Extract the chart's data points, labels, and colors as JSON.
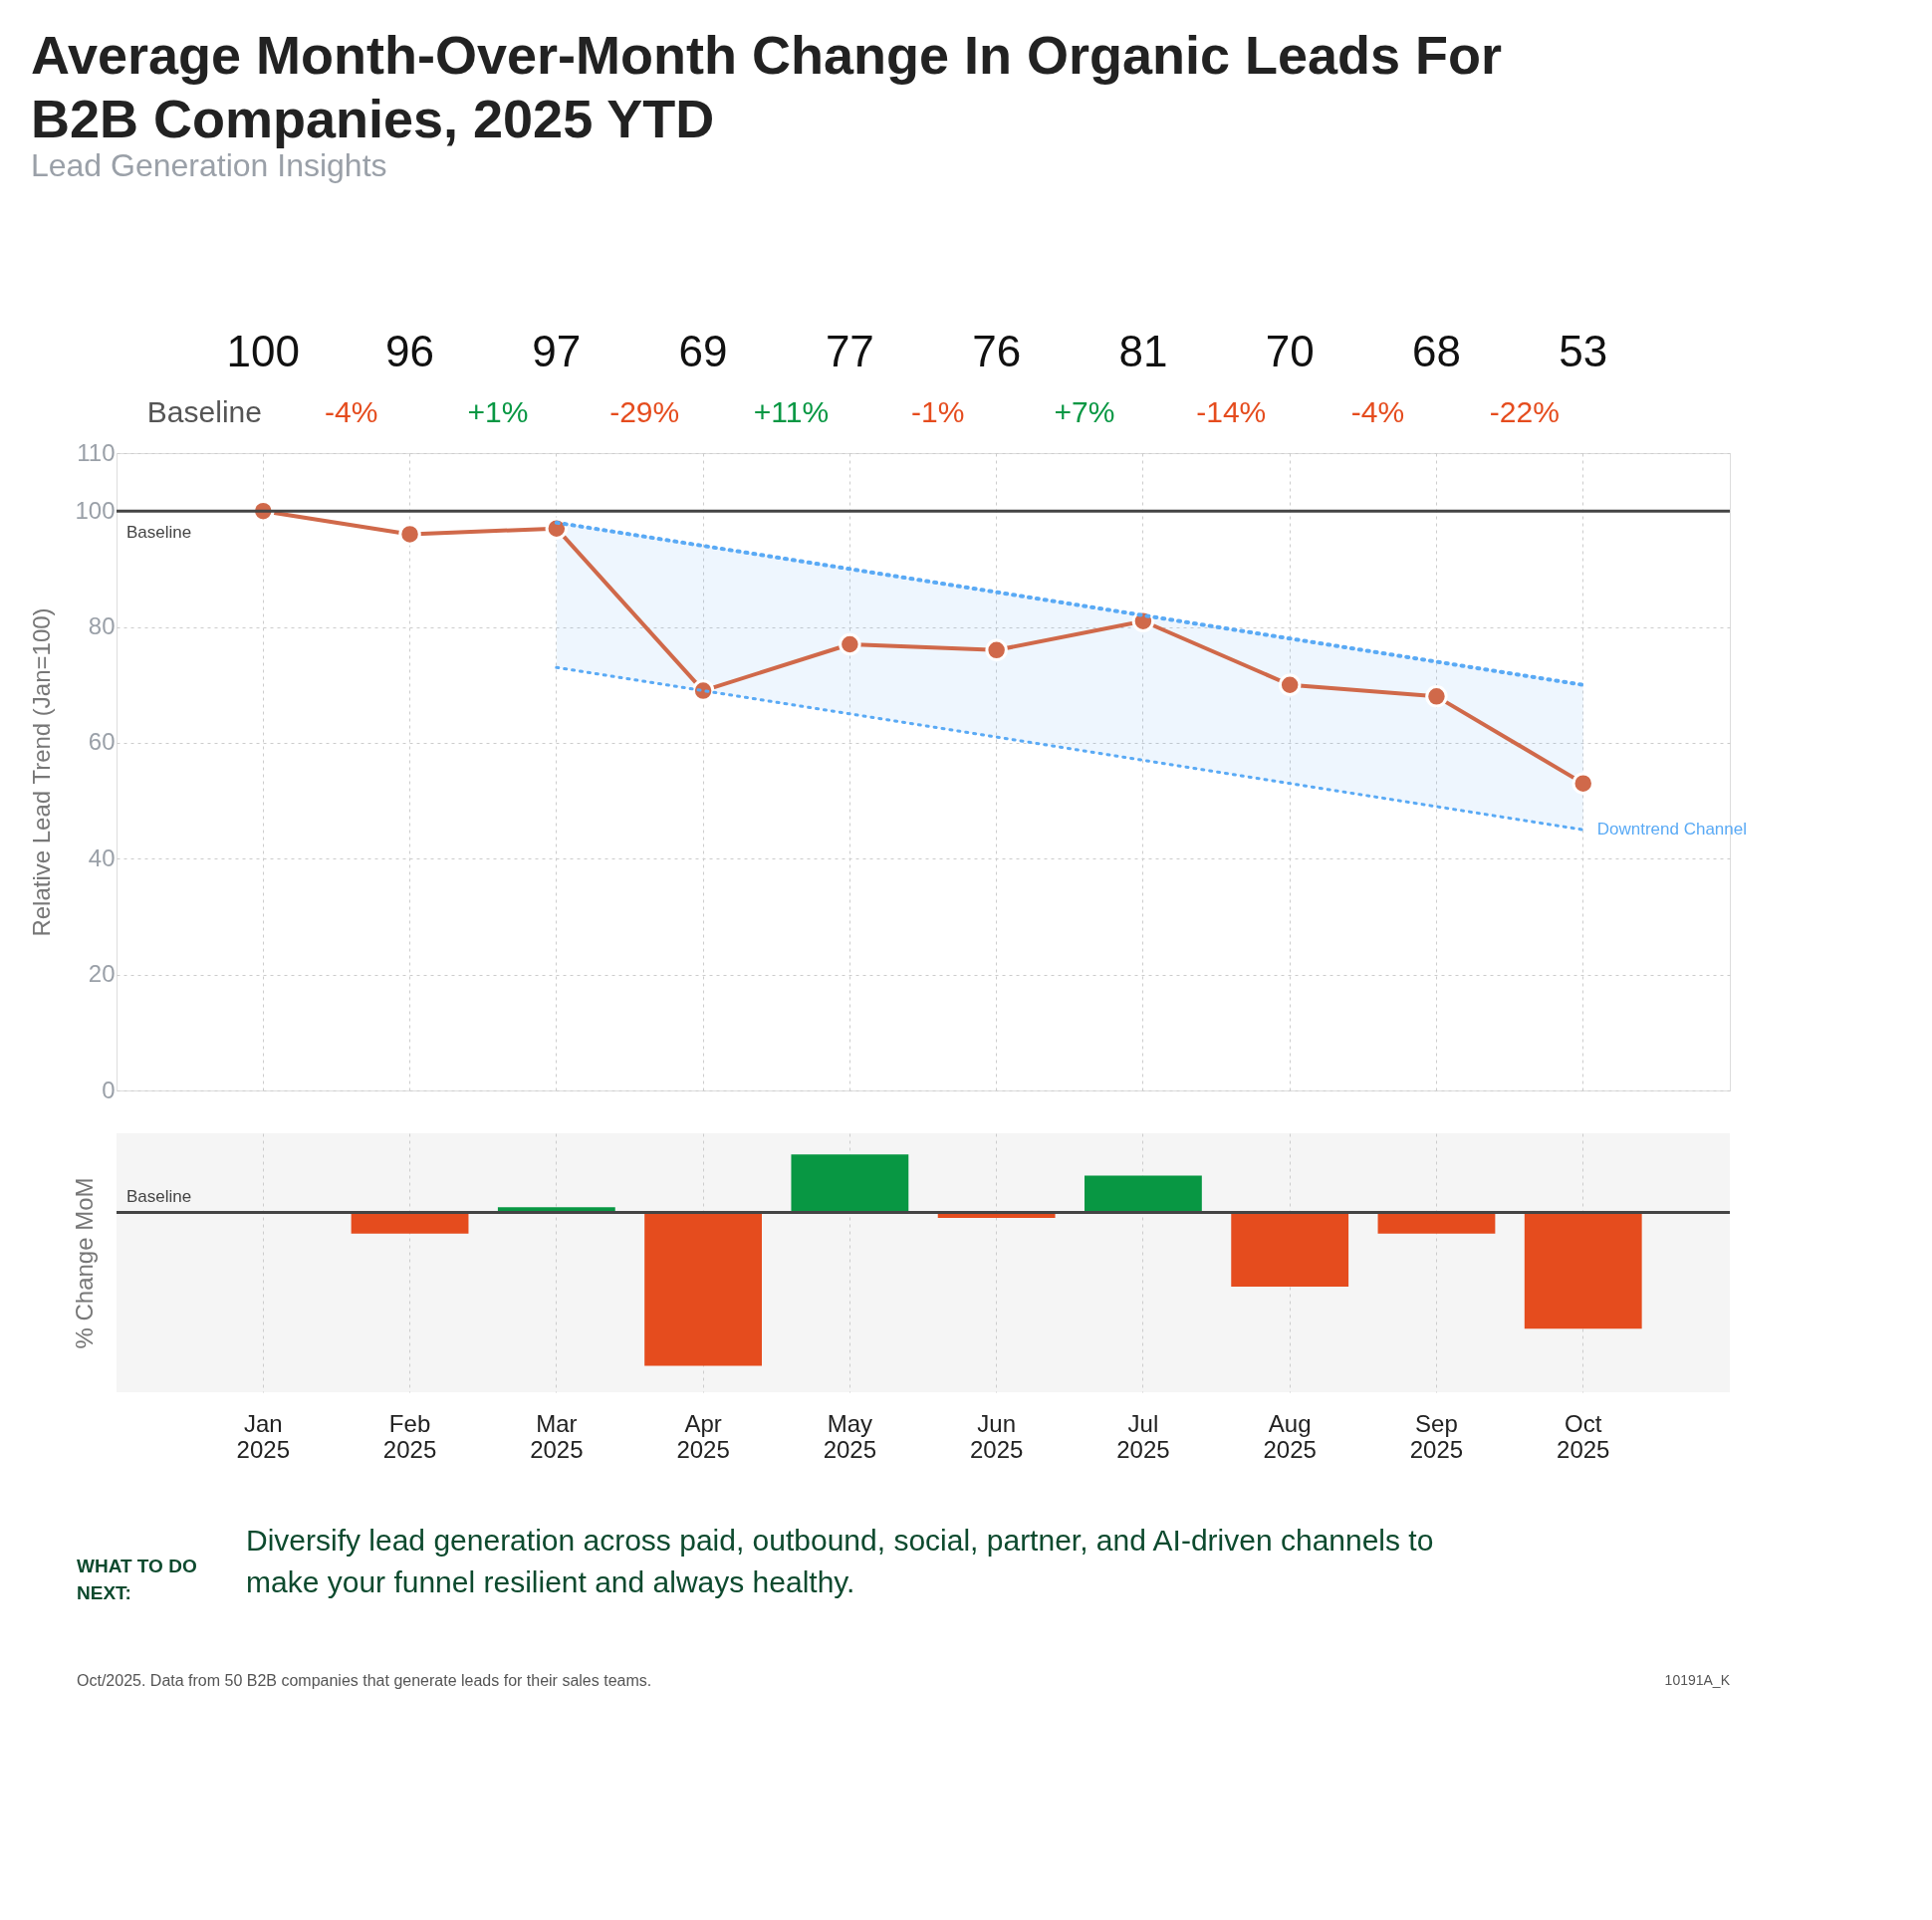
{
  "chart_data": [
    {
      "type": "line",
      "title": "Average Month-Over-Month Change In Organic Leads For B2B Companies, 2025 YTD",
      "subtitle": "Lead Generation Insights",
      "ylabel": "Relative Lead Trend (Jan=100)",
      "categories": [
        "Jan 2025",
        "Feb 2025",
        "Mar 2025",
        "Apr 2025",
        "May 2025",
        "Jun 2025",
        "Jul 2025",
        "Aug 2025",
        "Sep 2025",
        "Oct 2025"
      ],
      "series": [
        {
          "type": "line",
          "color": "#5aaaf5",
          "line_style": "dotted",
          "marker": "none",
          "x": [
            "Mar 2025",
            "Oct 2025"
          ],
          "values": [
            98,
            70
          ],
          "lower": [
            73,
            45
          ],
          "upper": [
            98,
            70
          ]
        },
        {
          "type": "line",
          "color": "#d0694a",
          "line_style": "solid",
          "marker": "circle",
          "values": [
            100,
            96,
            97,
            69,
            77,
            76,
            81,
            70,
            68,
            53
          ],
          "value_labels": [
            "100",
            "96",
            "97",
            "69",
            "77",
            "76",
            "81",
            "70",
            "68",
            "53"
          ]
        }
      ],
      "ylim": [
        0,
        110
      ],
      "yticks": [
        0,
        20,
        40,
        60,
        80,
        100,
        110
      ],
      "grid": true,
      "tick_labels": "y",
      "ref_lines": [
        {
          "axis": "y",
          "value": 100,
          "label": "Baseline",
          "color": "#444444"
        }
      ],
      "annotations": [
        {
          "text": "Downtrend Channel",
          "x": "Oct 2025",
          "y": 45
        }
      ]
    },
    {
      "type": "bar",
      "ylabel": "% Change MoM",
      "categories": [
        "Jan 2025",
        "Feb 2025",
        "Mar 2025",
        "Apr 2025",
        "May 2025",
        "Jun 2025",
        "Jul 2025",
        "Aug 2025",
        "Sep 2025",
        "Oct 2025"
      ],
      "values": [
        null,
        -4,
        1,
        -29,
        11,
        -1,
        7,
        -14,
        -4,
        -22
      ],
      "colors": [
        "#e54c1e",
        "#e54c1e",
        "#089743",
        "#e54c1e",
        "#089743",
        "#e54c1e",
        "#089743",
        "#e54c1e",
        "#e54c1e",
        "#e54c1e"
      ],
      "value_labels": [
        "Baseline",
        "-4%",
        "+1%",
        "-29%",
        "+11%",
        "-1%",
        "+7%",
        "-14%",
        "-4%",
        "-22%"
      ],
      "ylim": [
        -34,
        15
      ],
      "grid": "x",
      "tick_labels": "x",
      "ref_lines": [
        {
          "axis": "y",
          "value": 0,
          "label": "Baseline",
          "color": "#444444"
        }
      ],
      "annotations": [
        "WHAT TO DO NEXT:",
        "Diversify lead generation across paid, outbound, social, partner, and AI-driven channels to make your funnel resilient and always healthy.",
        "Oct/2025. Data from 50 B2B companies that generate leads for their sales teams.",
        "10191A_K"
      ]
    }
  ]
}
